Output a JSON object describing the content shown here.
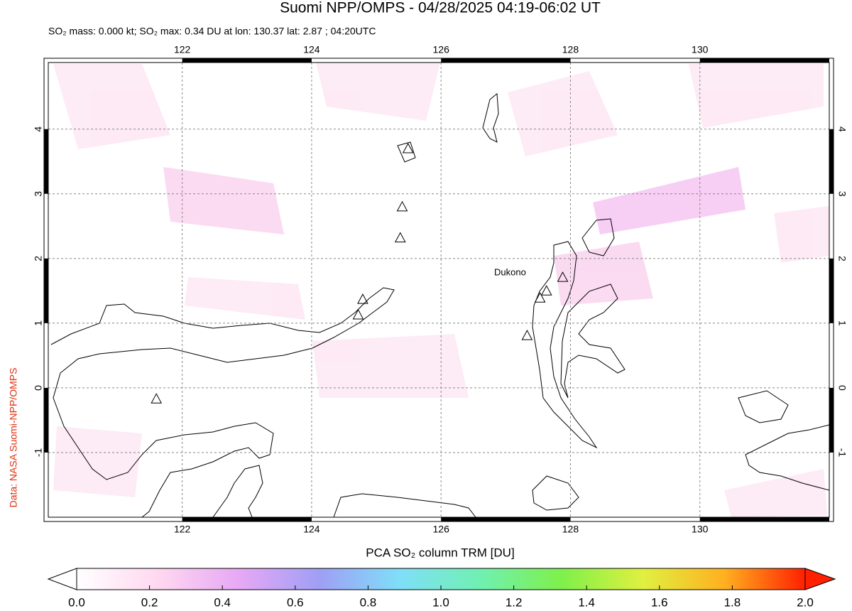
{
  "chart_data": {
    "type": "map",
    "title": "Suomi NPP/OMPS - 04/28/2025 04:19-06:02 UT",
    "subtitle": "SO₂ mass: 0.000 kt; SO₂ max: 0.34 DU at lon: 130.37 lat: 2.87 ; 04:20UTC",
    "credit": "Data: NASA Suomi-NPP/OMPS",
    "annotation": "Dukono",
    "xlim": [
      119.93,
      132.0
    ],
    "ylim": [
      -2.0,
      5.03
    ],
    "xticks": [
      122,
      124,
      126,
      128,
      130
    ],
    "yticks": [
      -1,
      0,
      1,
      2,
      3,
      4
    ],
    "grid": true,
    "volcanoes": {
      "lon": [
        121.6,
        125.49,
        125.4,
        125.37,
        124.79,
        124.72,
        127.88,
        127.63,
        127.53,
        127.33
      ],
      "lat": [
        -0.18,
        3.69,
        2.79,
        2.31,
        1.36,
        1.12,
        1.7,
        1.49,
        1.38,
        0.8
      ]
    },
    "colorbar": {
      "label": "PCA SO₂ column TRM [DU]",
      "lim": [
        0,
        2
      ],
      "colors": [
        "#ffffff",
        "#ffd8f0",
        "#e7a8f5",
        "#9f9ff5",
        "#7fdff8",
        "#70f0b0",
        "#7ff04a",
        "#e0f040",
        "#ffb020",
        "#ff2000"
      ],
      "ticks": [
        {
          "value": 0,
          "label": "0.0"
        },
        {
          "value": 0.2,
          "label": "0.2"
        },
        {
          "value": 0.4,
          "label": "0.4"
        },
        {
          "value": 0.6,
          "label": "0.6"
        },
        {
          "value": 0.8,
          "label": "0.8"
        },
        {
          "value": 1,
          "label": "1.0"
        },
        {
          "value": 1.2,
          "label": "1.2"
        },
        {
          "value": 1.4,
          "label": "1.4"
        },
        {
          "value": 1.6,
          "label": "1.6"
        },
        {
          "value": 1.8,
          "label": "1.8"
        },
        {
          "value": 2,
          "label": "2.0"
        }
      ]
    }
  }
}
